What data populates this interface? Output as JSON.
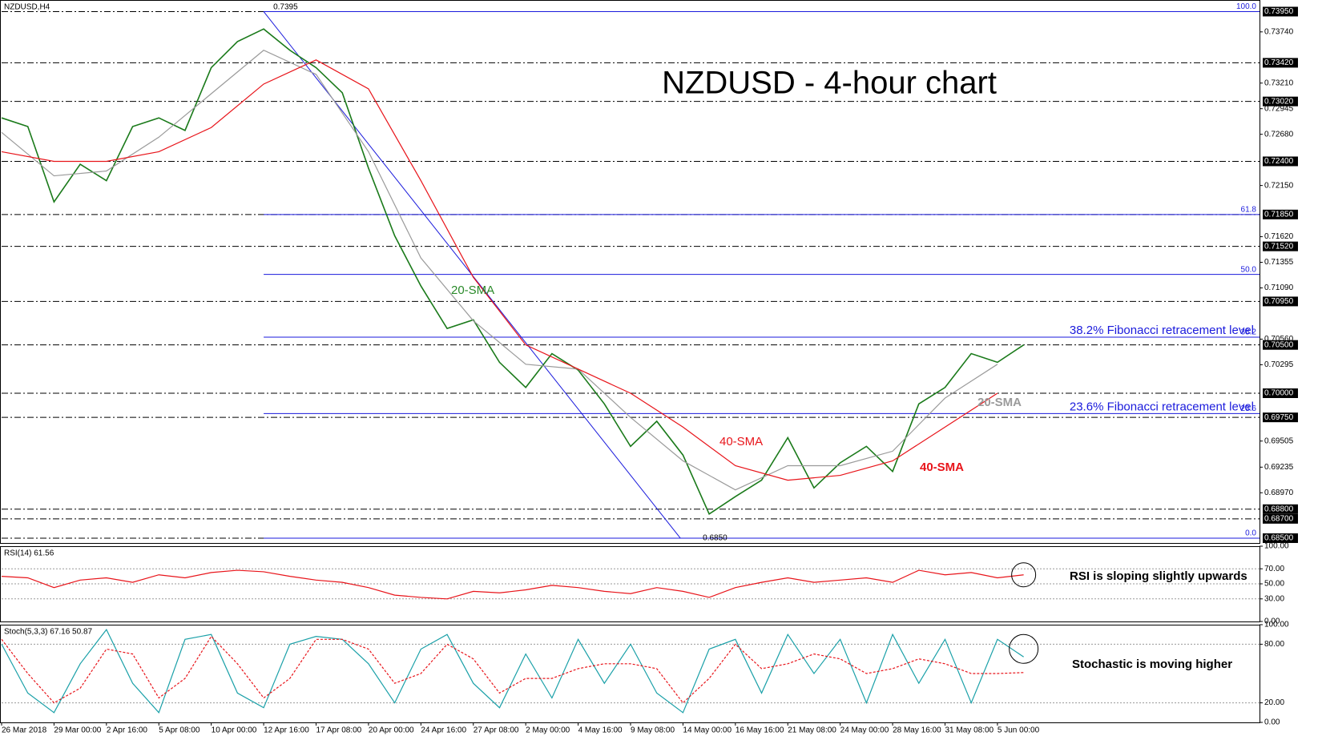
{
  "chart_data": [
    {
      "type": "line",
      "title": "NZDUSD - 4-hour chart",
      "label": "NZDUSD,H4",
      "xlim": [
        0,
        24
      ],
      "ylim": [
        0.6845,
        0.7407
      ],
      "yticks": [
        {
          "value": 0.7374,
          "label": "0.73740"
        },
        {
          "value": 0.7321,
          "label": "0.73210"
        },
        {
          "value": 0.72945,
          "label": "0.72945"
        },
        {
          "value": 0.7268,
          "label": "0.72680"
        },
        {
          "value": 0.7215,
          "label": "0.72150"
        },
        {
          "value": 0.7162,
          "label": "0.71620"
        },
        {
          "value": 0.71355,
          "label": "0.71355"
        },
        {
          "value": 0.7109,
          "label": "0.71090"
        },
        {
          "value": 0.7056,
          "label": "0.70560"
        },
        {
          "value": 0.70295,
          "label": "0.70295"
        },
        {
          "value": 0.69505,
          "label": "0.69505"
        },
        {
          "value": 0.69235,
          "label": "0.69235"
        },
        {
          "value": 0.6897,
          "label": "0.68970"
        }
      ],
      "levels": [
        {
          "value": 0.7395,
          "label": "0.73950"
        },
        {
          "value": 0.7342,
          "label": "0.73420"
        },
        {
          "value": 0.7302,
          "label": "0.73020"
        },
        {
          "value": 0.724,
          "label": "0.72400"
        },
        {
          "value": 0.7185,
          "label": "0.71850"
        },
        {
          "value": 0.7152,
          "label": "0.71520"
        },
        {
          "value": 0.7095,
          "label": "0.70950"
        },
        {
          "value": 0.705,
          "label": "0.70500"
        },
        {
          "value": 0.7,
          "label": "0.70000"
        },
        {
          "value": 0.6975,
          "label": "0.69750"
        },
        {
          "value": 0.688,
          "label": "0.68800"
        },
        {
          "value": 0.687,
          "label": "0.68700"
        },
        {
          "value": 0.685,
          "label": "0.68500"
        }
      ],
      "fibonacci": [
        {
          "value": 0.7395,
          "label": "100.0"
        },
        {
          "value": 0.7185,
          "label": "61.8"
        },
        {
          "value": 0.7123,
          "label": "50.0"
        },
        {
          "value": 0.7058,
          "label": "38.2"
        },
        {
          "value": 0.6979,
          "label": "23.6"
        },
        {
          "value": 0.685,
          "label": "0.0"
        }
      ],
      "fib_color": "#1a1adc",
      "trendline": {
        "x": [
          5,
          12.95
        ],
        "values": [
          0.7395,
          0.685
        ],
        "color": "#1a1adc"
      },
      "extremes": [
        0.7395,
        {
          "value": 0.685,
          "label": "0.6850"
        }
      ],
      "annotations": [
        "38.2% Fibonacci retracement level",
        "23.6% Fibonacci retracement level",
        "20-SMA",
        "40-SMA"
      ],
      "series": [
        {
          "color": "#1a7a1a",
          "x": [
            0,
            0.5,
            1,
            1.5,
            2,
            2.5,
            3,
            3.5,
            4,
            4.5,
            5,
            5.5,
            6,
            6.5,
            7,
            7.5,
            8,
            8.5,
            9,
            9.5,
            10,
            10.5,
            11,
            11.5,
            12,
            12.5,
            13,
            13.5,
            14,
            14.5,
            15,
            15.5,
            16,
            16.5,
            17,
            17.5,
            18,
            18.5,
            19,
            19.5
          ],
          "values": [
            0.7285,
            0.7276,
            0.7198,
            0.7237,
            0.722,
            0.7276,
            0.7285,
            0.7272,
            0.7337,
            0.7364,
            0.7377,
            0.7355,
            0.7337,
            0.7311,
            0.7233,
            0.7163,
            0.7111,
            0.7067,
            0.7076,
            0.7032,
            0.7006,
            0.7041,
            0.7024,
            0.6989,
            0.6945,
            0.6971,
            0.6936,
            0.6875,
            0.6893,
            0.691,
            0.6954,
            0.6902,
            0.6928,
            0.6945,
            0.6919,
            0.6989,
            0.7006,
            0.7041,
            0.7032,
            0.705
          ]
        },
        {
          "name": "20-SMA",
          "color": "#9a9a9a",
          "x": [
            0,
            1,
            2,
            3,
            4,
            5,
            6,
            7,
            8,
            9,
            10,
            11,
            12,
            13,
            14,
            15,
            16,
            17,
            18,
            19
          ],
          "values": [
            0.727,
            0.7225,
            0.723,
            0.7265,
            0.731,
            0.7355,
            0.733,
            0.725,
            0.714,
            0.7075,
            0.703,
            0.7025,
            0.6975,
            0.693,
            0.69,
            0.6925,
            0.6925,
            0.694,
            0.6995,
            0.703
          ]
        },
        {
          "name": "40-SMA",
          "color": "#e8141a",
          "x": [
            0,
            1,
            2,
            3,
            4,
            5,
            6,
            7,
            8,
            9,
            10,
            11,
            12,
            13,
            14,
            15,
            16,
            17,
            18,
            19
          ],
          "values": [
            0.725,
            0.724,
            0.724,
            0.725,
            0.7275,
            0.732,
            0.7345,
            0.7315,
            0.722,
            0.712,
            0.705,
            0.7025,
            0.7,
            0.6965,
            0.6925,
            0.691,
            0.6915,
            0.693,
            0.6965,
            0.7
          ]
        }
      ]
    },
    {
      "type": "line",
      "label": "RSI(14) 61.56",
      "xlim": [
        0,
        24
      ],
      "ylim": [
        0,
        100
      ],
      "yticks": [
        {
          "value": 100,
          "label": "100.00"
        },
        {
          "value": 70,
          "label": "70.00"
        },
        {
          "value": 50,
          "label": "50.00"
        },
        {
          "value": 30,
          "label": "30.00"
        },
        {
          "value": 0,
          "label": "0.00"
        }
      ],
      "annotation": "RSI is sloping slightly upwards",
      "x": [
        0,
        0.5,
        1,
        1.5,
        2,
        2.5,
        3,
        3.5,
        4,
        4.5,
        5,
        5.5,
        6,
        6.5,
        7,
        7.5,
        8,
        8.5,
        9,
        9.5,
        10,
        10.5,
        11,
        11.5,
        12,
        12.5,
        13,
        13.5,
        14,
        14.5,
        15,
        15.5,
        16,
        16.5,
        17,
        17.5,
        18,
        18.5,
        19,
        19.5
      ],
      "series": [
        {
          "color": "#e8141a",
          "values": [
            60,
            58,
            45,
            55,
            58,
            52,
            62,
            58,
            65,
            68,
            66,
            60,
            55,
            52,
            45,
            35,
            32,
            30,
            40,
            38,
            42,
            48,
            45,
            40,
            37,
            45,
            40,
            32,
            45,
            52,
            58,
            52,
            55,
            58,
            52,
            68,
            62,
            65,
            58,
            62
          ]
        }
      ]
    },
    {
      "type": "line",
      "label": "Stoch(5,3,3) 67.16 50.87",
      "xlim": [
        0,
        24
      ],
      "ylim": [
        0,
        100
      ],
      "yticks": [
        {
          "value": 100,
          "label": "100.00"
        },
        {
          "value": 80,
          "label": "80.00"
        },
        {
          "value": 20,
          "label": "20.00"
        },
        {
          "value": 0,
          "label": "0.00"
        }
      ],
      "annotation": "Stochastic is moving higher",
      "x": [
        0,
        0.5,
        1,
        1.5,
        2,
        2.5,
        3,
        3.5,
        4,
        4.5,
        5,
        5.5,
        6,
        6.5,
        7,
        7.5,
        8,
        8.5,
        9,
        9.5,
        10,
        10.5,
        11,
        11.5,
        12,
        12.5,
        13,
        13.5,
        14,
        14.5,
        15,
        15.5,
        16,
        16.5,
        17,
        17.5,
        18,
        18.5,
        19,
        19.5
      ],
      "xticks": [
        {
          "value": 0,
          "label": "26 Mar 2018"
        },
        {
          "value": 1,
          "label": "29 Mar 00:00"
        },
        {
          "value": 2,
          "label": "2 Apr 16:00"
        },
        {
          "value": 3,
          "label": "5 Apr 08:00"
        },
        {
          "value": 4,
          "label": "10 Apr 00:00"
        },
        {
          "value": 5,
          "label": "12 Apr 16:00"
        },
        {
          "value": 6,
          "label": "17 Apr 08:00"
        },
        {
          "value": 7,
          "label": "20 Apr 00:00"
        },
        {
          "value": 8,
          "label": "24 Apr 16:00"
        },
        {
          "value": 9,
          "label": "27 Apr 08:00"
        },
        {
          "value": 10,
          "label": "2 May 00:00"
        },
        {
          "value": 11,
          "label": "4 May 16:00"
        },
        {
          "value": 12,
          "label": "9 May 08:00"
        },
        {
          "value": 13,
          "label": "14 May 00:00"
        },
        {
          "value": 14,
          "label": "16 May 16:00"
        },
        {
          "value": 15,
          "label": "21 May 08:00"
        },
        {
          "value": 16,
          "label": "24 May 00:00"
        },
        {
          "value": 17,
          "label": "28 May 16:00"
        },
        {
          "value": 18,
          "label": "31 May 08:00"
        },
        {
          "value": 19,
          "label": "5 Jun 00:00"
        }
      ],
      "series": [
        {
          "color": "#1aa0a8",
          "values": [
            80,
            30,
            10,
            60,
            95,
            40,
            10,
            85,
            90,
            30,
            15,
            80,
            88,
            85,
            60,
            20,
            75,
            90,
            40,
            15,
            70,
            25,
            85,
            40,
            80,
            30,
            10,
            75,
            85,
            30,
            90,
            50,
            85,
            20,
            90,
            40,
            85,
            20,
            85,
            67
          ]
        },
        {
          "color": "#e8141a",
          "dashed": true,
          "values": [
            85,
            50,
            20,
            35,
            75,
            70,
            25,
            45,
            88,
            60,
            25,
            45,
            85,
            85,
            75,
            40,
            50,
            80,
            65,
            30,
            45,
            45,
            55,
            60,
            60,
            55,
            20,
            45,
            80,
            55,
            60,
            70,
            65,
            50,
            55,
            65,
            60,
            50,
            50,
            51
          ]
        }
      ]
    }
  ]
}
